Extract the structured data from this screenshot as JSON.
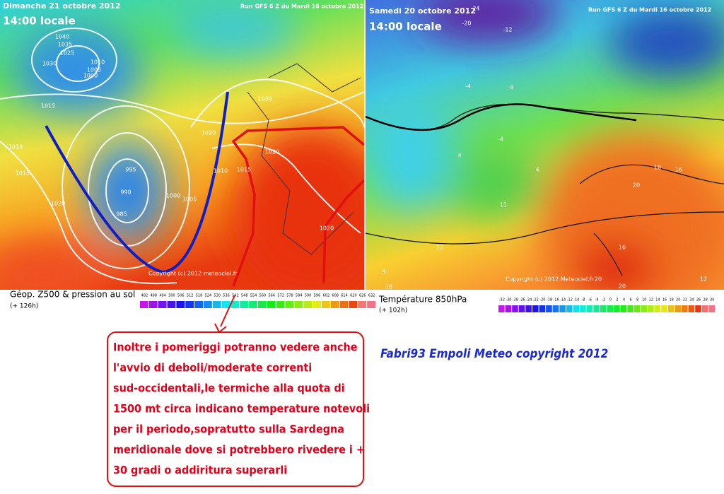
{
  "left_map": {
    "date": "Dimanche 21 octobre 2012",
    "time": "14:00 locale",
    "run": "Run GFS 6 Z du Mardi 16 octobre 2012",
    "copyright": "Copyright (c) 2012 meteociel.fr",
    "caption": "Géop. Z500 & pression au sol",
    "lead": "(+ 126h)",
    "isobar_labels": [
      "1040",
      "1035",
      "1025",
      "1030",
      "1010",
      "1005",
      "1000",
      "1015",
      "1010",
      "1015",
      "1020",
      "995",
      "990",
      "985",
      "1000",
      "1005",
      "1010",
      "1020",
      "1030",
      "1020",
      "1015",
      "1020"
    ],
    "legend_labels": [
      "482",
      "488",
      "494",
      "500",
      "506",
      "512",
      "518",
      "524",
      "530",
      "536",
      "542",
      "548",
      "554",
      "560",
      "566",
      "572",
      "578",
      "584",
      "590",
      "596",
      "602",
      "608",
      "614",
      "620",
      "626",
      "632"
    ]
  },
  "right_map": {
    "date": "Samedi 20 octobre 2012",
    "time": "14:00 locale",
    "run": "Run GFS 6 Z du Mardi 16 octobre 2012",
    "copyright": "Copyright (c) 2012 Meteociel.fr",
    "caption": "Température 850hPa",
    "lead": "(+ 102h)",
    "temp_labels": [
      "-24",
      "-20",
      "-12",
      "-4",
      "-4",
      "-4",
      "4",
      "4",
      "12",
      "12",
      "8",
      "16",
      "16",
      "16",
      "20",
      "16",
      "20",
      "20",
      "12"
    ],
    "legend_labels": [
      "-32",
      "-30",
      "-28",
      "-26",
      "-24",
      "-22",
      "-20",
      "-18",
      "-16",
      "-14",
      "-12",
      "-10",
      "-8",
      "-6",
      "-4",
      "-2",
      "0",
      "2",
      "4",
      "6",
      "8",
      "10",
      "12",
      "14",
      "16",
      "18",
      "20",
      "22",
      "24",
      "26",
      "28",
      "30"
    ]
  },
  "note": {
    "lines": [
      "Inoltre i pomeriggi potranno vedere anche",
      "l'avvio di deboli/moderate correnti",
      "sud-occidentali,le termiche alla quota di",
      "1500 mt circa indicano temperature notevoli",
      "per il periodo,sopratutto sulla Sardegna",
      "meridionale dove si potrebbero rivedere i +",
      "30 gradi o addiritura superarli"
    ]
  },
  "credit": "Fabri93 Empoli Meteo copyright 2012"
}
